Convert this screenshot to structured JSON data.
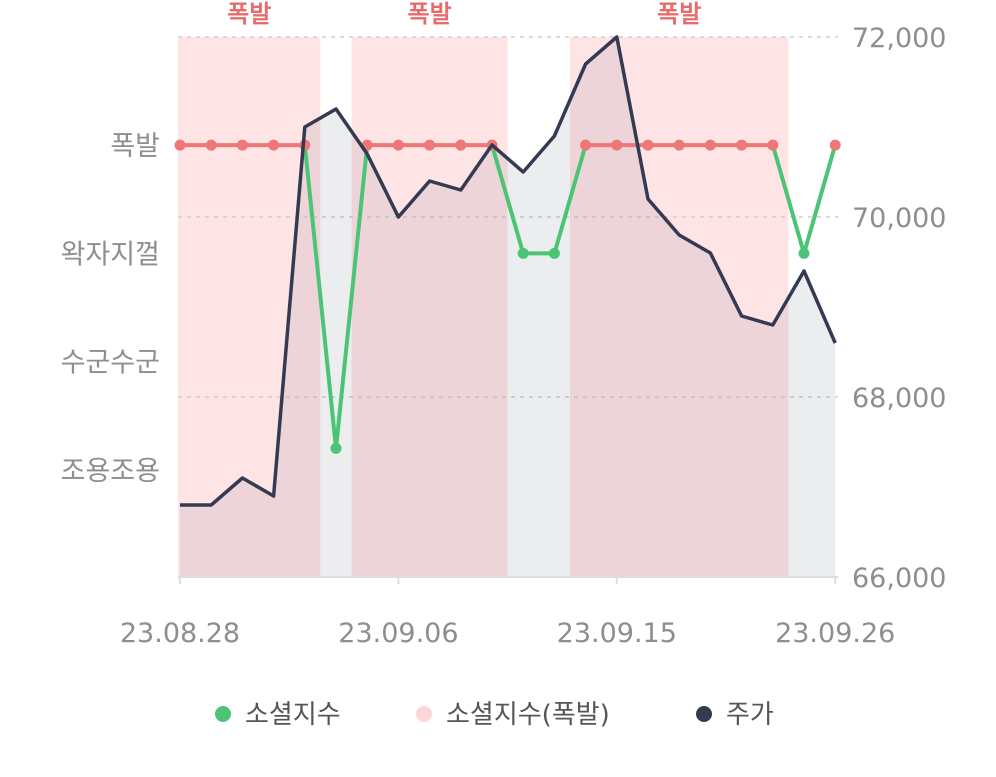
{
  "chart_data": {
    "type": "line",
    "x_tick_labels": [
      "23.08.28",
      "23.09.06",
      "23.09.15",
      "23.09.26"
    ],
    "y_right": {
      "ticks": [
        66000,
        68000,
        70000,
        72000
      ],
      "tick_labels": [
        "66,000",
        "68,000",
        "70,000",
        "72,000"
      ],
      "ylim": [
        66000,
        72000
      ]
    },
    "y_left": {
      "levels": [
        "조용조용",
        "수군수군",
        "왁자지껄",
        "폭발"
      ]
    },
    "band_label": "폭발",
    "grid": true,
    "legend_position": "bottom",
    "legend": [
      {
        "name": "소셜지수",
        "color": "#4cc476"
      },
      {
        "name": "소셜지수(폭발)",
        "color": "#ffd6d8"
      },
      {
        "name": "주가",
        "color": "#343a52"
      }
    ],
    "series": [
      {
        "name": "주가",
        "color": "#343a52",
        "values": [
          66800,
          66800,
          67100,
          66900,
          71000,
          71200,
          70700,
          70000,
          70400,
          70300,
          70800,
          70500,
          70900,
          71700,
          72000,
          70200,
          69800,
          69600,
          68900,
          68800,
          69400,
          68600
        ]
      },
      {
        "name": "소셜지수",
        "color": "#4cc476",
        "explosion_color": "#ee7777",
        "levels": [
          4,
          4,
          4,
          4,
          4,
          1.2,
          4,
          4,
          4,
          4,
          4,
          3,
          3,
          4,
          4,
          4,
          4,
          4,
          4,
          4,
          3,
          4
        ]
      }
    ],
    "explosion_ranges": [
      [
        0,
        4
      ],
      [
        6,
        10
      ],
      [
        13,
        19
      ]
    ],
    "band_label_ranges": [
      [
        0,
        4
      ],
      [
        6,
        10
      ],
      [
        13,
        19
      ]
    ]
  }
}
